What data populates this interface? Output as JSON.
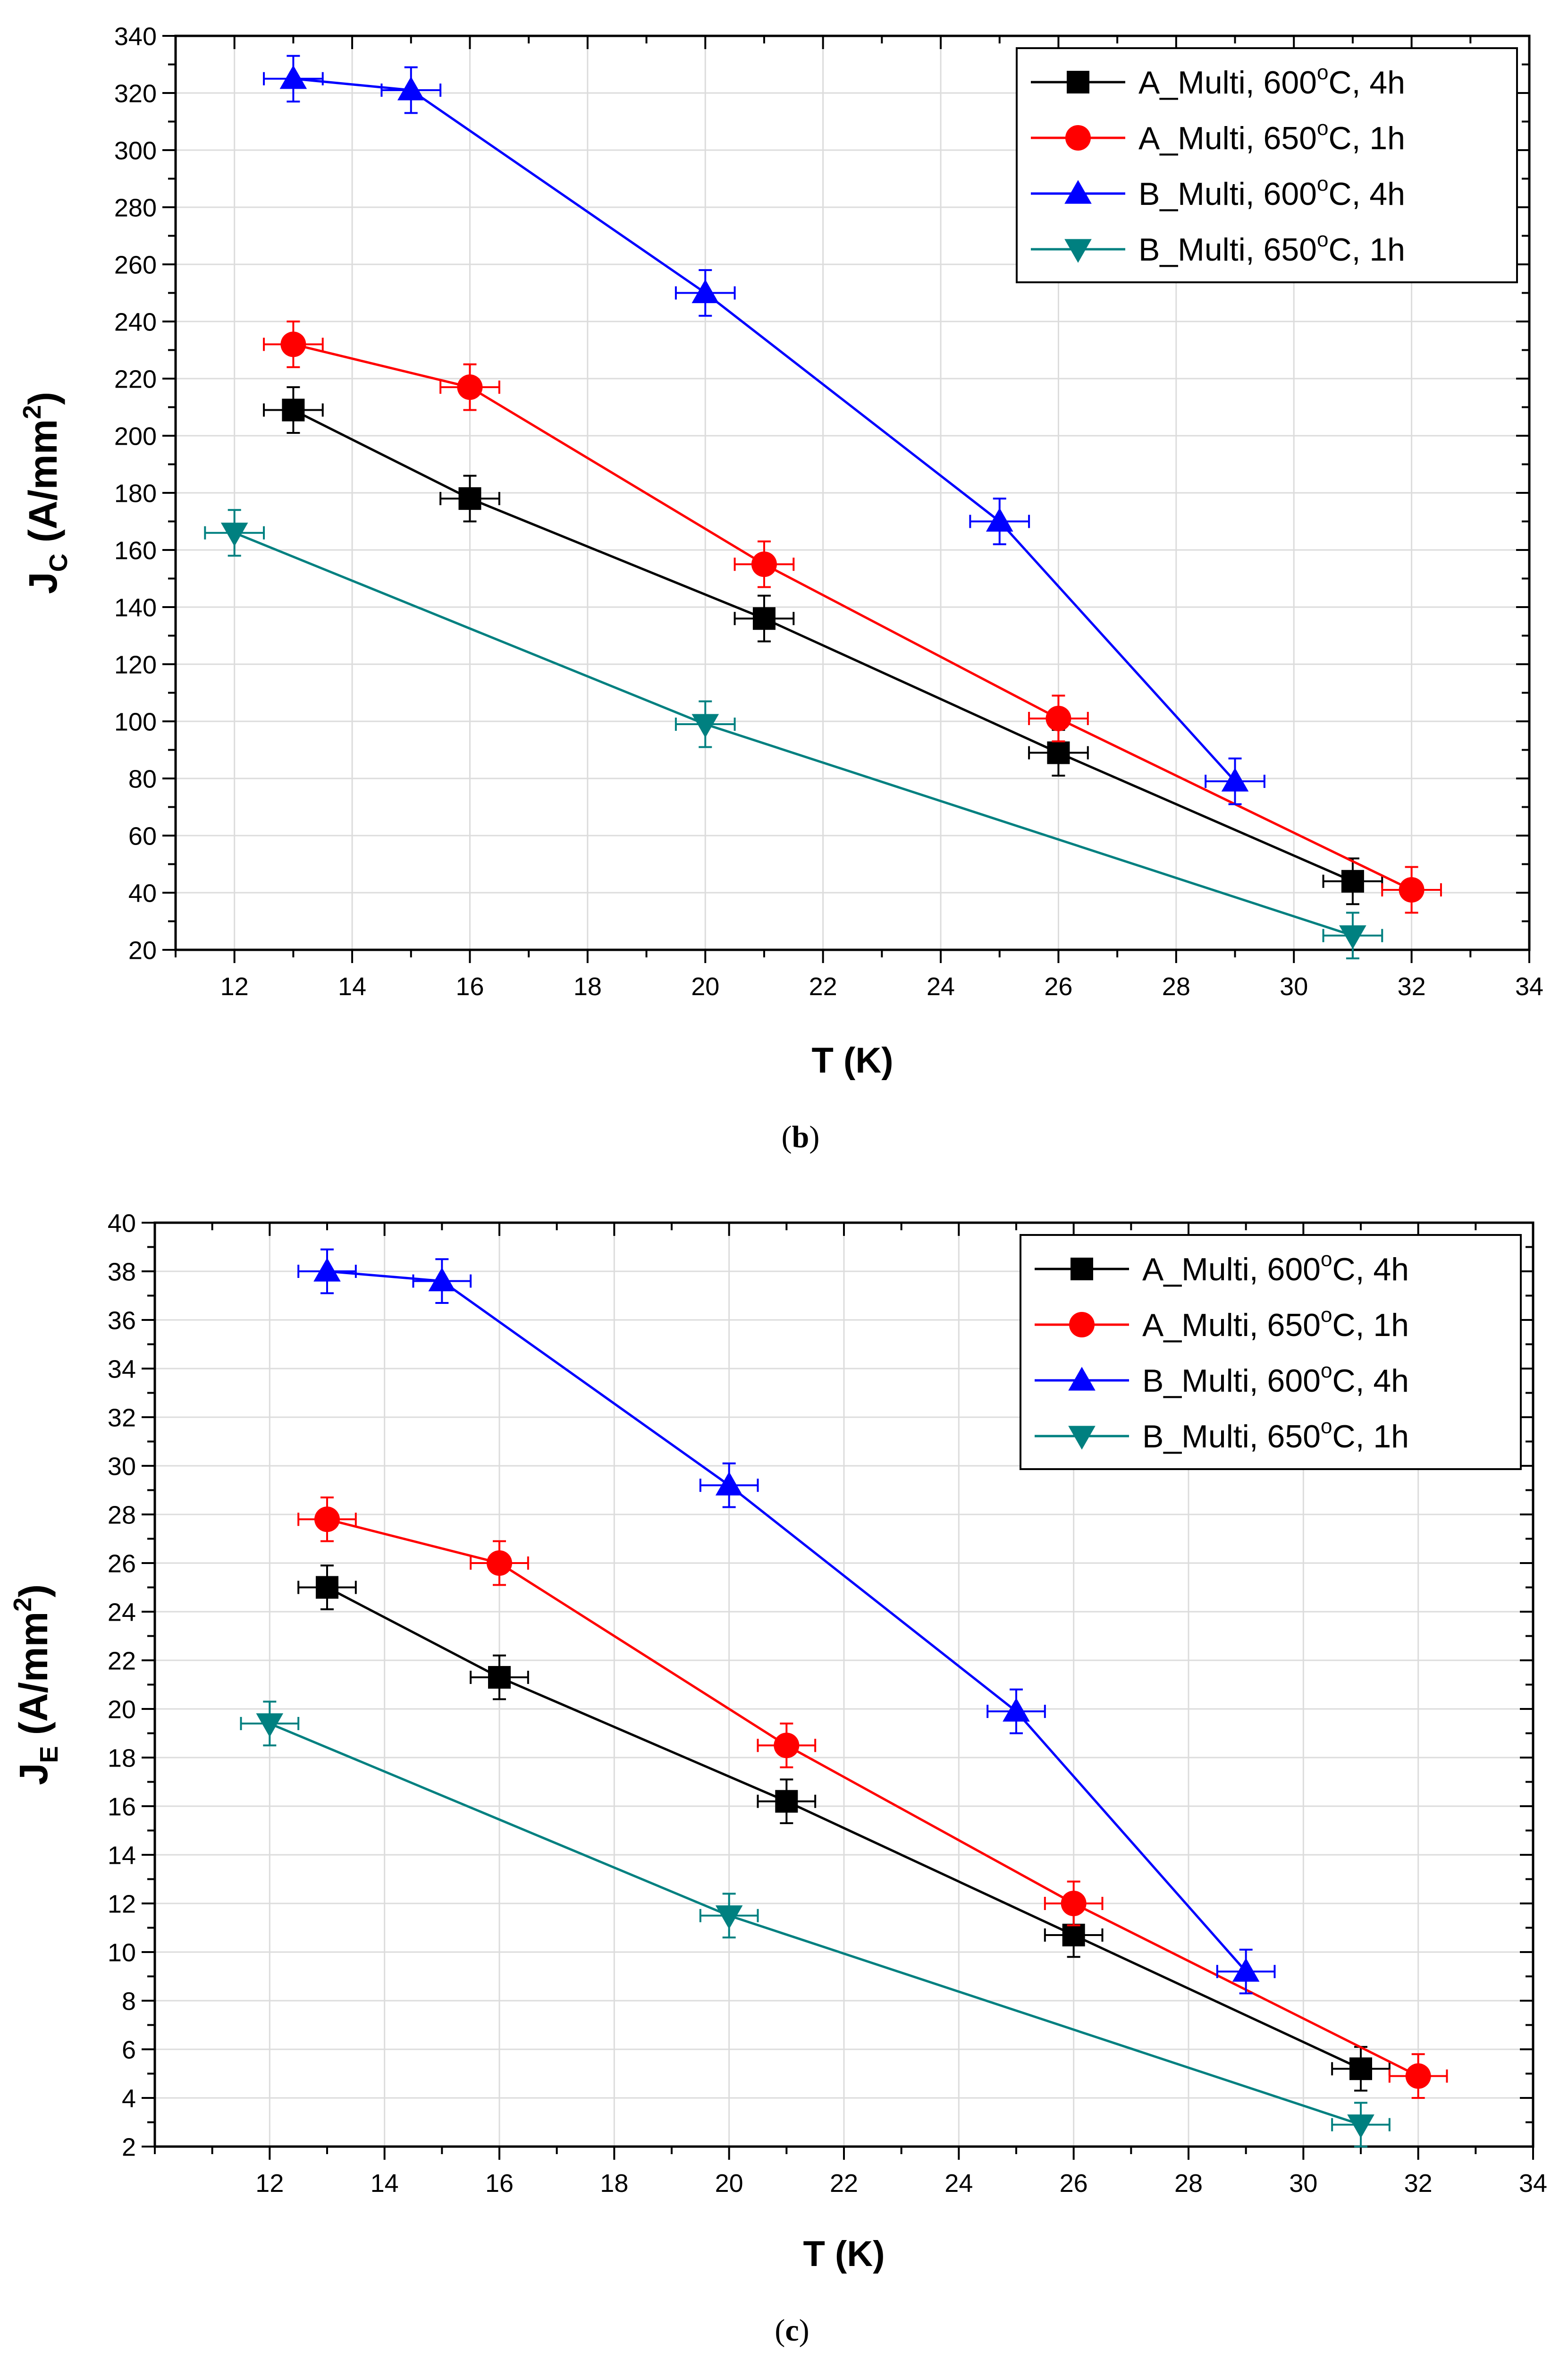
{
  "charts": [
    {
      "type": "line",
      "caption_open": "(",
      "caption_letter": "b",
      "caption_close": ")",
      "xlabel": "T (K)",
      "ylabel_main": "J",
      "ylabel_sub": "C",
      "ylabel_unit": " (A/mm",
      "ylabel_sup": "2",
      "ylabel_close": ")",
      "xlim": [
        11,
        34
      ],
      "ylim": [
        20,
        340
      ],
      "xticks": [
        12,
        14,
        16,
        18,
        20,
        22,
        24,
        26,
        28,
        30,
        32,
        34
      ],
      "yticks": [
        20,
        40,
        60,
        80,
        100,
        120,
        140,
        160,
        180,
        200,
        220,
        240,
        260,
        280,
        300,
        320,
        340
      ],
      "grid": true,
      "legend_position": "top-right",
      "chart_data": {
        "type": "line",
        "series": [
          {
            "name_pre": "A_Multi, 600",
            "name_sup": "o",
            "name_post": "C, 4h",
            "color": "#000000",
            "marker": "square",
            "x": [
              13,
              16,
              21,
              26,
              31
            ],
            "y": [
              209,
              178,
              136,
              89,
              44
            ],
            "yerr": [
              8,
              8,
              8,
              8,
              8
            ],
            "xerr": [
              0.5,
              0.5,
              0.5,
              0.5,
              0.5
            ]
          },
          {
            "name_pre": "A_Multi, 650",
            "name_sup": "o",
            "name_post": "C, 1h",
            "color": "#ff0000",
            "marker": "circle",
            "x": [
              13,
              16,
              21,
              26,
              32
            ],
            "y": [
              232,
              217,
              155,
              101,
              41
            ],
            "yerr": [
              8,
              8,
              8,
              8,
              8
            ],
            "xerr": [
              0.5,
              0.5,
              0.5,
              0.5,
              0.5
            ]
          },
          {
            "name_pre": "B_Multi, 600",
            "name_sup": "o",
            "name_post": "C, 4h",
            "color": "#0000ff",
            "marker": "triangle-up",
            "x": [
              13,
              15,
              20,
              25,
              29
            ],
            "y": [
              325,
              321,
              250,
              170,
              79
            ],
            "yerr": [
              8,
              8,
              8,
              8,
              8
            ],
            "xerr": [
              0.5,
              0.5,
              0.5,
              0.5,
              0.5
            ]
          },
          {
            "name_pre": "B_Multi, 650",
            "name_sup": "o",
            "name_post": "C, 1h",
            "color": "#008080",
            "marker": "triangle-down",
            "x": [
              12,
              20,
              31
            ],
            "y": [
              166,
              99,
              25
            ],
            "yerr": [
              8,
              8,
              8
            ],
            "xerr": [
              0.5,
              0.5,
              0.5
            ]
          }
        ]
      }
    },
    {
      "type": "line",
      "caption_open": "(",
      "caption_letter": "c",
      "caption_close": ")",
      "xlabel": "T (K)",
      "ylabel_main": "J",
      "ylabel_sub": "E",
      "ylabel_unit": " (A/mm",
      "ylabel_sup": "2",
      "ylabel_close": ")",
      "xlim": [
        10,
        34
      ],
      "ylim": [
        2,
        40
      ],
      "xticks": [
        12,
        14,
        16,
        18,
        20,
        22,
        24,
        26,
        28,
        30,
        32,
        34
      ],
      "yticks": [
        2,
        4,
        6,
        8,
        10,
        12,
        14,
        16,
        18,
        20,
        22,
        24,
        26,
        28,
        30,
        32,
        34,
        36,
        38,
        40
      ],
      "grid": true,
      "legend_position": "top-right",
      "chart_data": {
        "type": "line",
        "series": [
          {
            "name_pre": "A_Multi, 600",
            "name_sup": "o",
            "name_post": "C, 4h",
            "color": "#000000",
            "marker": "square",
            "x": [
              13,
              16,
              21,
              26,
              31
            ],
            "y": [
              25.0,
              21.3,
              16.2,
              10.7,
              5.2
            ],
            "yerr": [
              0.9,
              0.9,
              0.9,
              0.9,
              0.9
            ],
            "xerr": [
              0.5,
              0.5,
              0.5,
              0.5,
              0.5
            ]
          },
          {
            "name_pre": "A_Multi, 650",
            "name_sup": "o",
            "name_post": "C, 1h",
            "color": "#ff0000",
            "marker": "circle",
            "x": [
              13,
              16,
              21,
              26,
              32
            ],
            "y": [
              27.8,
              26.0,
              18.5,
              12.0,
              4.9
            ],
            "yerr": [
              0.9,
              0.9,
              0.9,
              0.9,
              0.9
            ],
            "xerr": [
              0.5,
              0.5,
              0.5,
              0.5,
              0.5
            ]
          },
          {
            "name_pre": "B_Multi, 600",
            "name_sup": "o",
            "name_post": "C, 4h",
            "color": "#0000ff",
            "marker": "triangle-up",
            "x": [
              13,
              15,
              20,
              25,
              29
            ],
            "y": [
              38.0,
              37.6,
              29.2,
              19.9,
              9.2
            ],
            "yerr": [
              0.9,
              0.9,
              0.9,
              0.9,
              0.9
            ],
            "xerr": [
              0.5,
              0.5,
              0.5,
              0.5,
              0.5
            ]
          },
          {
            "name_pre": "B_Multi, 650",
            "name_sup": "o",
            "name_post": "C, 1h",
            "color": "#008080",
            "marker": "triangle-down",
            "x": [
              12,
              20,
              31
            ],
            "y": [
              19.4,
              11.5,
              2.9
            ],
            "yerr": [
              0.9,
              0.9,
              0.9
            ],
            "xerr": [
              0.5,
              0.5,
              0.5
            ]
          }
        ]
      }
    }
  ]
}
